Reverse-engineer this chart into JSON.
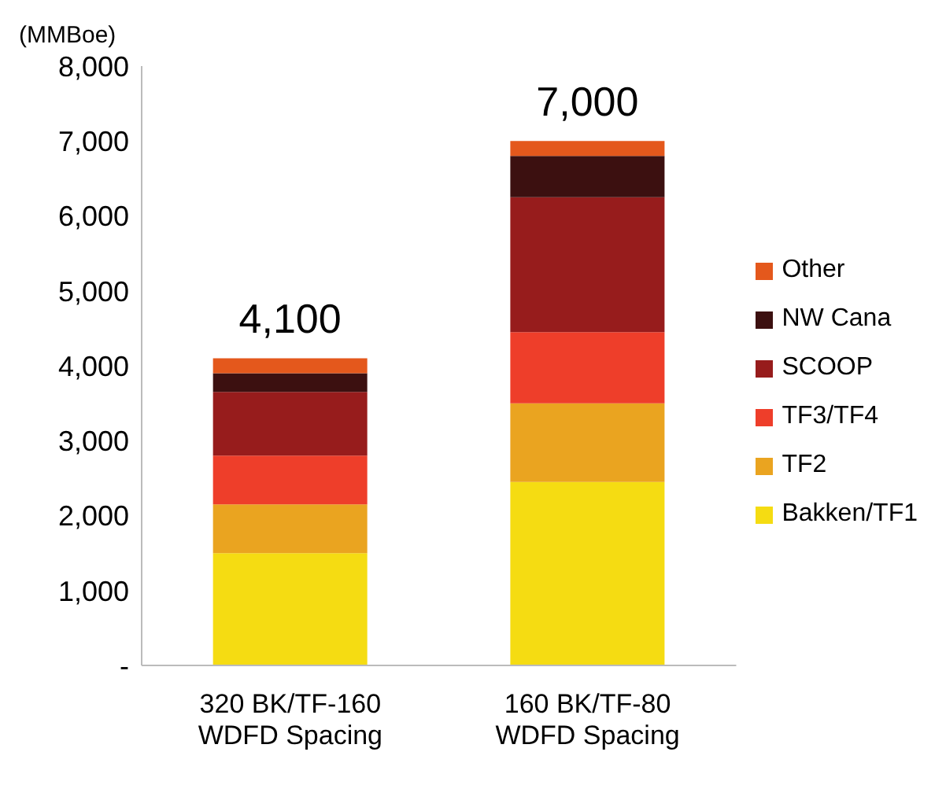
{
  "chart_data": {
    "type": "bar",
    "stacked": true,
    "ylabel": "(MMBoe)",
    "categories": [
      "320 BK/TF-160 WDFD Spacing",
      "160 BK/TF-80 WDFD Spacing"
    ],
    "series": [
      {
        "name": "Bakken/TF1",
        "color": "#f5dc12",
        "values": [
          1500,
          2450
        ]
      },
      {
        "name": "TF2",
        "color": "#eaa420",
        "values": [
          650,
          1050
        ]
      },
      {
        "name": "TF3/TF4",
        "color": "#ee3e2a",
        "values": [
          650,
          950
        ]
      },
      {
        "name": "SCOOP",
        "color": "#971c1c",
        "values": [
          850,
          1800
        ]
      },
      {
        "name": "NW Cana",
        "color": "#3c1010",
        "values": [
          250,
          550
        ]
      },
      {
        "name": "Other",
        "color": "#e4581c",
        "values": [
          200,
          200
        ]
      }
    ],
    "totals": [
      "4,100",
      "7,000"
    ],
    "ylim": [
      0,
      8000
    ],
    "yticks": [
      {
        "value": 0,
        "label": "-"
      },
      {
        "value": 1000,
        "label": "1,000"
      },
      {
        "value": 2000,
        "label": "2,000"
      },
      {
        "value": 3000,
        "label": "3,000"
      },
      {
        "value": 4000,
        "label": "4,000"
      },
      {
        "value": 5000,
        "label": "5,000"
      },
      {
        "value": 6000,
        "label": "6,000"
      },
      {
        "value": 7000,
        "label": "7,000"
      },
      {
        "value": 8000,
        "label": "8,000"
      }
    ],
    "grid": false,
    "legend": "right"
  }
}
